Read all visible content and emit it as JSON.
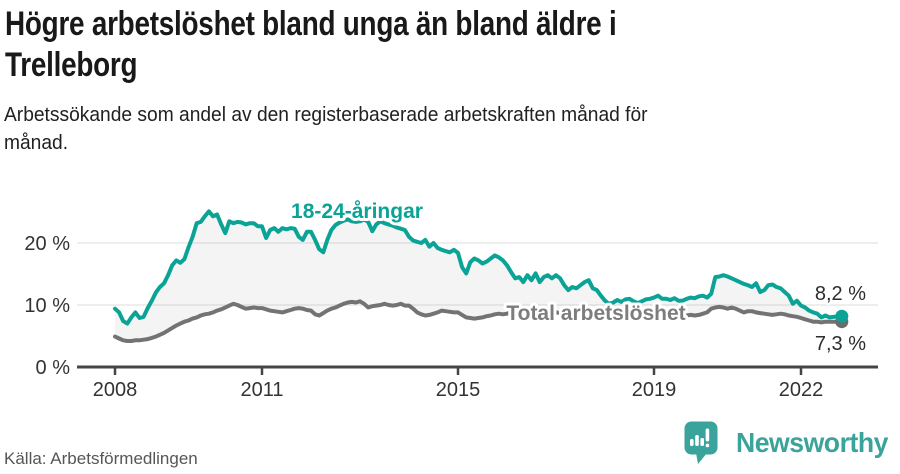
{
  "header": {
    "title_lines": [
      "Högre arbetslöshet bland unga än bland äldre i",
      "Trelleborg"
    ],
    "subtitle_lines": [
      "Arbetssökande som andel av den registerbaserade arbetskraften månad för",
      "månad."
    ]
  },
  "chart_data": {
    "type": "line",
    "title": "Högre arbetslöshet bland unga än bland äldre i Trelleborg",
    "xlabel": "",
    "ylabel": "",
    "grid": "horizontal",
    "legend_position": "inline-labels",
    "x_start_year": 2008,
    "x_step_months": 1,
    "ylim": [
      0,
      30
    ],
    "y_ticks": [
      {
        "value": 0,
        "label": "0 %"
      },
      {
        "value": 10,
        "label": "10 %"
      },
      {
        "value": 20,
        "label": "20 %"
      }
    ],
    "x_ticks": [
      {
        "year": 2008,
        "label": "2008"
      },
      {
        "year": 2011,
        "label": "2011"
      },
      {
        "year": 2015,
        "label": "2015"
      },
      {
        "year": 2019,
        "label": "2019"
      },
      {
        "year": 2022,
        "label": "2022"
      }
    ],
    "fill_between_series": true,
    "series": [
      {
        "name": "18-24-åringar",
        "color": "#0aa396",
        "end_label": "8,2 %",
        "end_value": 8.2,
        "values": [
          9.4,
          8.8,
          7.4,
          7.0,
          8.0,
          8.8,
          7.9,
          8.1,
          9.5,
          10.7,
          12.0,
          12.9,
          13.5,
          14.8,
          16.4,
          17.2,
          16.8,
          17.4,
          19.3,
          21.0,
          23.2,
          23.4,
          24.3,
          25.1,
          24.3,
          24.6,
          23.0,
          21.6,
          23.5,
          23.2,
          23.4,
          23.3,
          23.0,
          23.2,
          23.2,
          22.7,
          22.7,
          20.8,
          22.1,
          22.4,
          21.8,
          22.4,
          22.2,
          22.4,
          22.3,
          21.0,
          20.5,
          21.8,
          21.8,
          20.5,
          19.0,
          18.5,
          20.5,
          22.1,
          22.9,
          23.3,
          23.6,
          23.8,
          23.5,
          23.4,
          23.5,
          23.8,
          23.4,
          21.9,
          23.0,
          23.5,
          23.2,
          23.0,
          22.8,
          22.5,
          22.3,
          22.1,
          21.0,
          20.4,
          20.2,
          20.0,
          20.5,
          19.4,
          20.0,
          19.2,
          18.9,
          18.7,
          18.5,
          18.9,
          18.4,
          16.1,
          15.1,
          16.9,
          17.5,
          17.2,
          16.7,
          17.0,
          17.5,
          18.0,
          17.7,
          17.2,
          16.4,
          15.3,
          14.3,
          14.5,
          13.7,
          14.8,
          14.0,
          15.1,
          13.7,
          14.5,
          14.8,
          14.3,
          14.8,
          14.3,
          13.2,
          12.4,
          12.9,
          12.7,
          13.2,
          13.7,
          14.0,
          12.7,
          12.4,
          11.5,
          10.7,
          10.2,
          10.4,
          10.8,
          10.5,
          10.9,
          11.0,
          10.6,
          10.3,
          10.6,
          10.9,
          11.0,
          11.2,
          11.5,
          11.0,
          11.0,
          10.8,
          11.1,
          10.7,
          10.7,
          11.0,
          11.2,
          11.1,
          11.4,
          11.5,
          11.2,
          11.8,
          14.5,
          14.6,
          14.8,
          14.6,
          14.3,
          14.0,
          13.7,
          13.4,
          13.2,
          12.9,
          13.5,
          12.1,
          12.4,
          13.2,
          13.3,
          12.9,
          12.7,
          12.1,
          11.5,
          10.2,
          10.7,
          9.9,
          9.6,
          9.1,
          8.8,
          8.6,
          8.0,
          8.3,
          8.0,
          8.1,
          8.1,
          8.2
        ]
      },
      {
        "name": "Total arbetslöshet",
        "color": "#737373",
        "end_label": "7,3 %",
        "end_value": 7.3,
        "values": [
          4.9,
          4.6,
          4.3,
          4.2,
          4.2,
          4.3,
          4.3,
          4.4,
          4.5,
          4.7,
          4.9,
          5.2,
          5.5,
          5.9,
          6.3,
          6.7,
          7.0,
          7.3,
          7.5,
          7.8,
          8.0,
          8.3,
          8.5,
          8.6,
          8.8,
          9.1,
          9.3,
          9.6,
          9.9,
          10.2,
          10.0,
          9.7,
          9.4,
          9.5,
          9.6,
          9.5,
          9.5,
          9.3,
          9.1,
          9.0,
          8.9,
          8.8,
          9.0,
          9.2,
          9.4,
          9.5,
          9.4,
          9.2,
          9.1,
          8.5,
          8.3,
          8.7,
          9.1,
          9.4,
          9.6,
          9.9,
          10.2,
          10.4,
          10.5,
          10.4,
          10.6,
          10.2,
          9.6,
          9.8,
          9.9,
          10.0,
          10.2,
          10.0,
          9.9,
          10.0,
          10.2,
          9.9,
          9.9,
          9.4,
          8.8,
          8.5,
          8.3,
          8.4,
          8.6,
          8.8,
          9.1,
          9.0,
          8.9,
          8.8,
          8.8,
          8.4,
          8.0,
          7.9,
          7.8,
          7.9,
          8.0,
          8.2,
          8.3,
          8.5,
          8.6,
          8.5,
          8.6,
          8.8,
          9.0,
          9.1,
          9.0,
          8.9,
          8.8,
          8.7,
          8.8,
          8.9,
          9.0,
          8.9,
          8.8,
          8.7,
          8.6,
          8.5,
          8.6,
          8.7,
          8.8,
          8.7,
          8.6,
          8.5,
          8.4,
          8.3,
          8.2,
          8.1,
          8.0,
          8.1,
          8.0,
          8.1,
          8.2,
          8.1,
          8.0,
          8.1,
          8.2,
          8.1,
          8.1,
          8.0,
          8.1,
          8.2,
          8.1,
          8.2,
          8.3,
          8.2,
          8.3,
          8.4,
          8.3,
          8.4,
          8.6,
          8.8,
          9.4,
          9.6,
          9.7,
          9.6,
          9.4,
          9.6,
          9.4,
          9.1,
          8.8,
          9.0,
          9.0,
          8.8,
          8.7,
          8.6,
          8.5,
          8.4,
          8.5,
          8.6,
          8.5,
          8.3,
          8.2,
          8.1,
          7.9,
          7.7,
          7.5,
          7.3,
          7.3,
          7.2,
          7.3,
          7.3,
          7.3,
          7.3,
          7.3
        ]
      }
    ]
  },
  "footer": {
    "source": "Källa: Arbetsförmedlingen",
    "brand": "Newsworthy"
  },
  "colors": {
    "teal": "#0aa396",
    "gray": "#737373",
    "logo_teal": "#3aa39b",
    "fill_between": "rgba(0,0,0,0.045)",
    "gridline": "#e4e4e4",
    "axis": "#454545"
  }
}
